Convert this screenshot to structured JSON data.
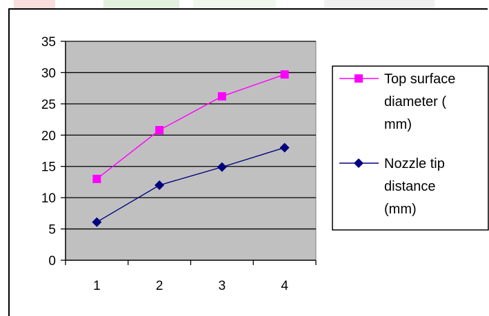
{
  "chart_data": {
    "type": "line",
    "x": [
      1,
      2,
      3,
      4
    ],
    "xlabel": "",
    "ylabel": "",
    "ylim": [
      0,
      35
    ],
    "yticks": [
      0,
      5,
      10,
      15,
      20,
      25,
      30,
      35
    ],
    "grid": true,
    "plot_background": "#c0c0c0",
    "legend_placement": "right",
    "series": [
      {
        "name": "Top surface diameter ( mm)",
        "legend_lines": [
          "Top surface",
          "diameter (",
          "mm)"
        ],
        "values": [
          13,
          20.8,
          26.2,
          29.7
        ],
        "color": "#ff00ff",
        "marker": "square"
      },
      {
        "name": "Nozzle tip distance (mm)",
        "legend_lines": [
          "Nozzle tip",
          "distance",
          "(mm)"
        ],
        "values": [
          6.1,
          12,
          14.9,
          18
        ],
        "color": "#000080",
        "marker": "diamond"
      }
    ]
  }
}
